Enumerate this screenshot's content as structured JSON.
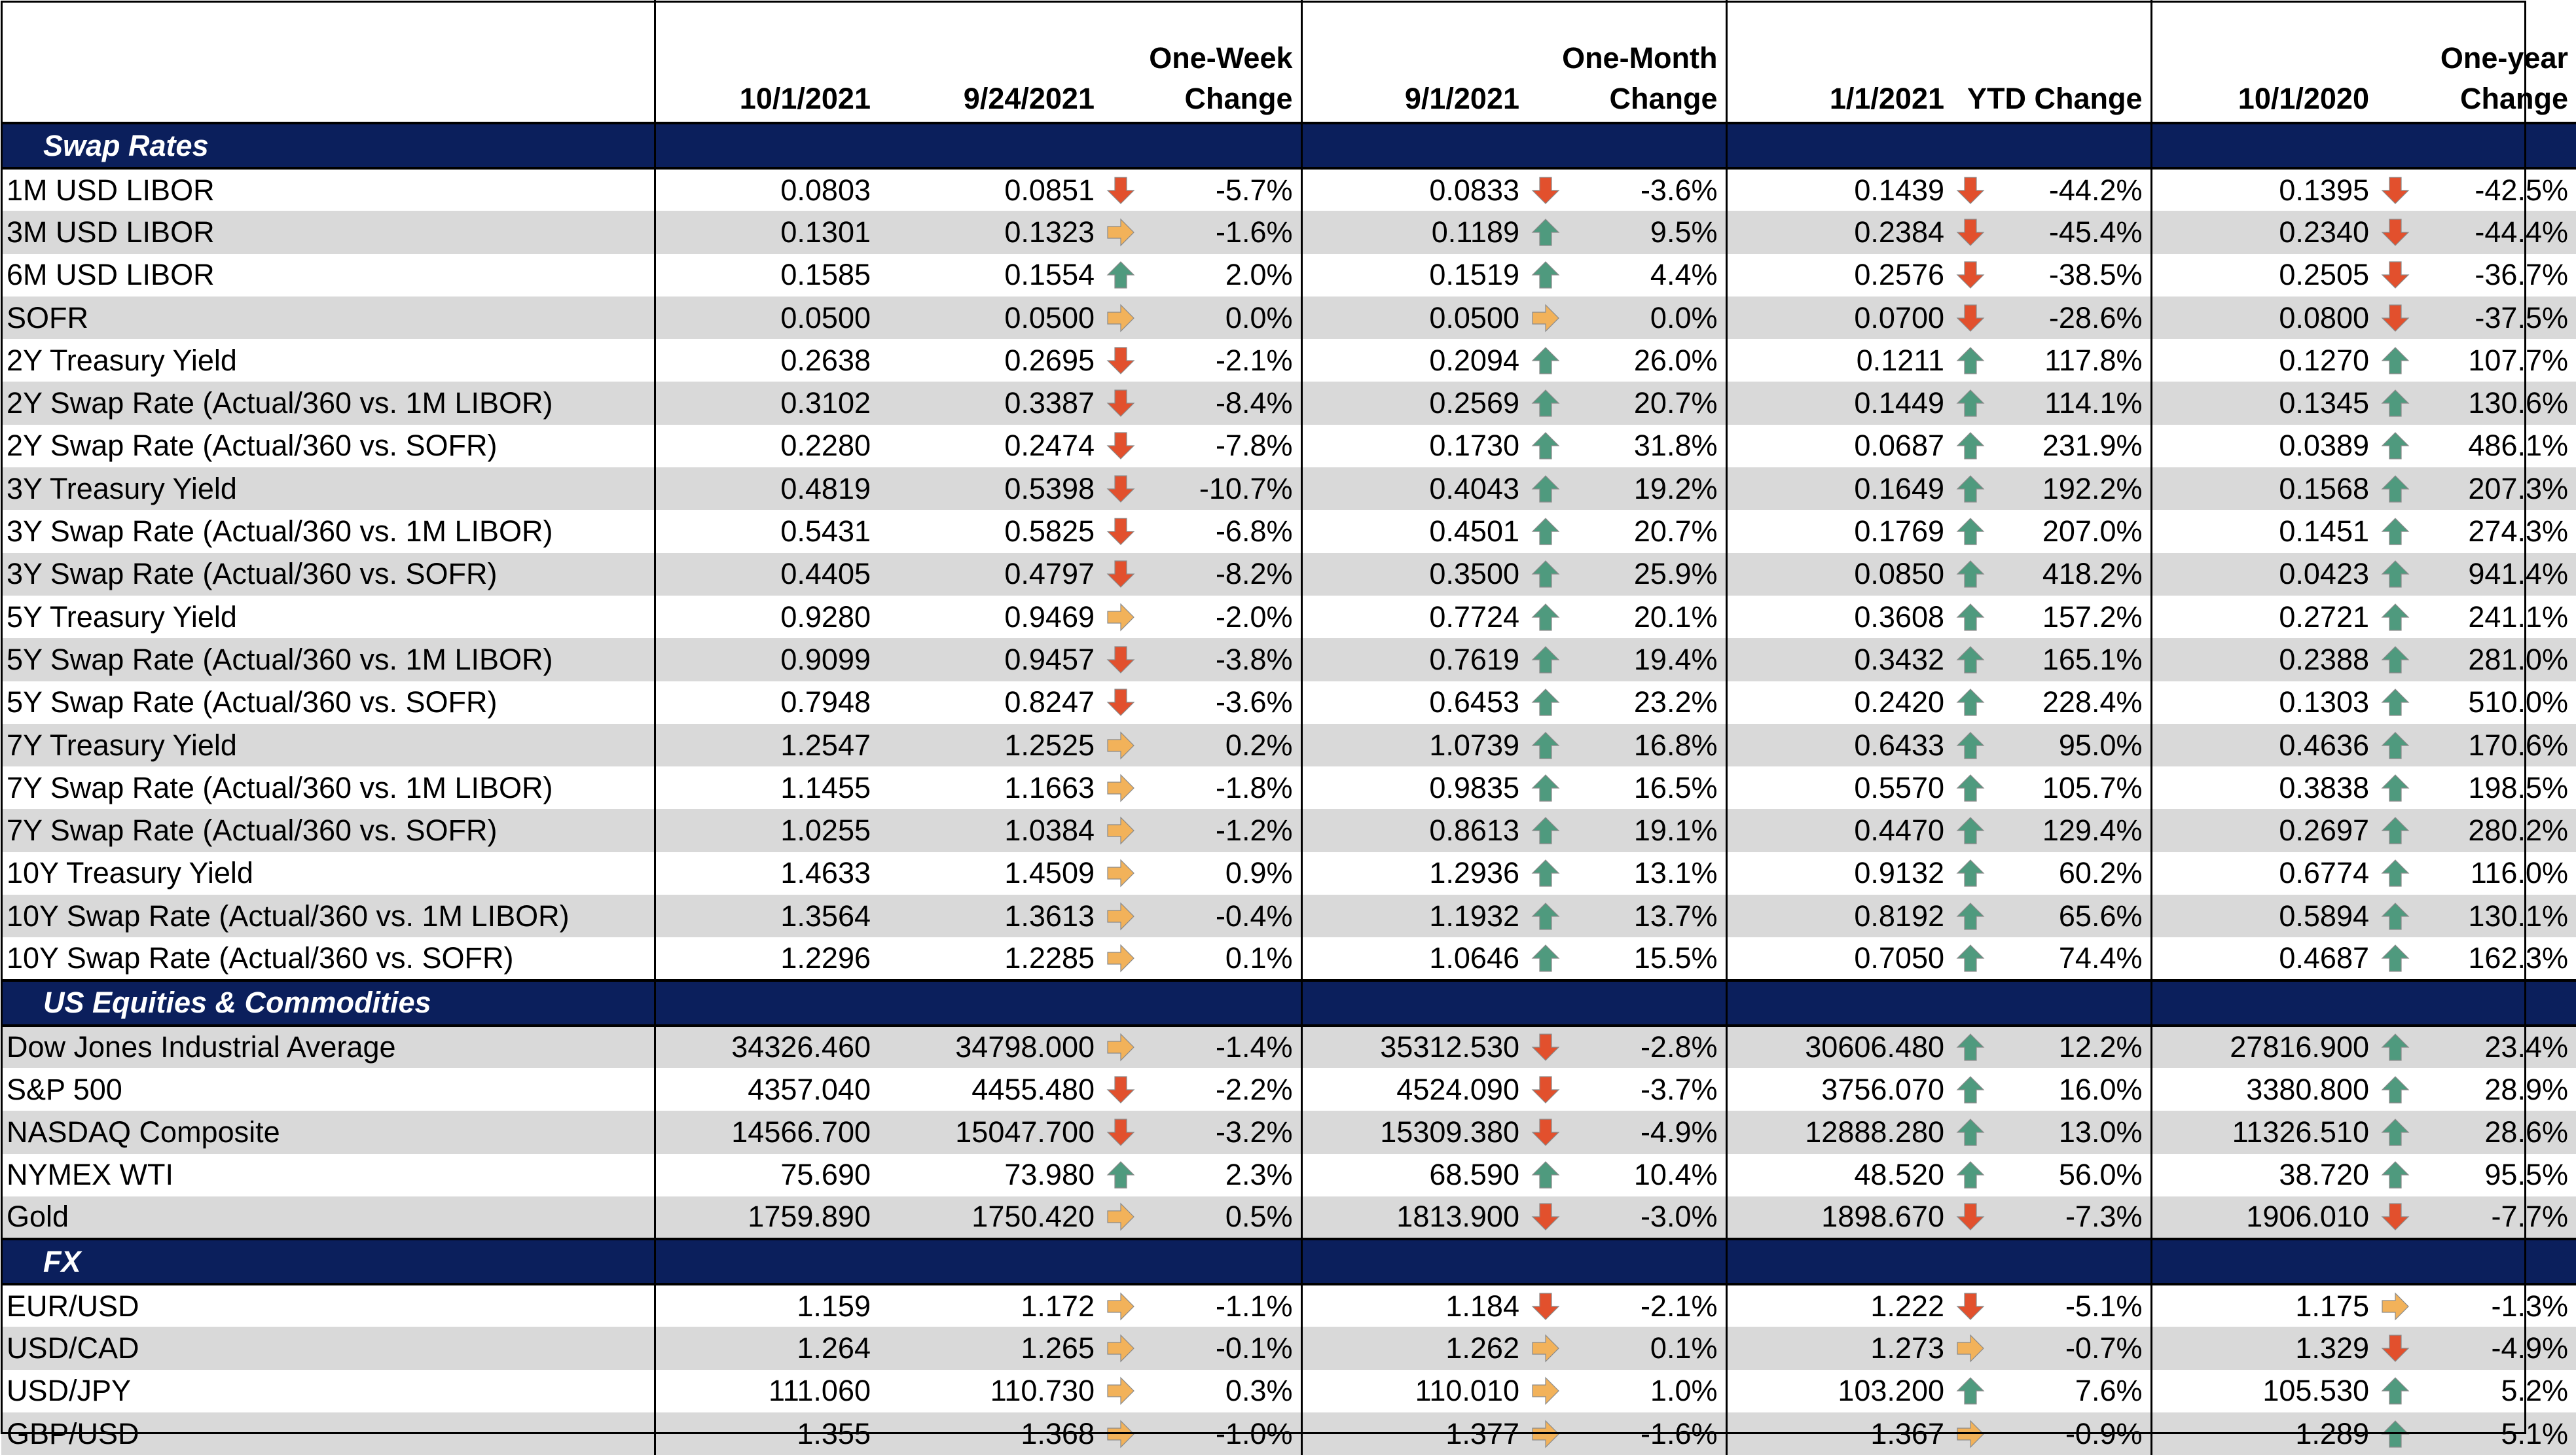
{
  "headers": {
    "label": "",
    "d1": "10/1/2021",
    "d2": "9/24/2021",
    "c2": [
      "One-Week",
      "Change"
    ],
    "d3": "9/1/2021",
    "c3": [
      "One-Month",
      "Change"
    ],
    "d4": "1/1/2021",
    "c4": [
      "",
      "YTD Change"
    ],
    "d5": "10/1/2020",
    "c5": [
      "One-year",
      "Change"
    ]
  },
  "colors": {
    "section_bg": "#0b1f5c",
    "shade": "#d9d9d9",
    "up": "#4f9a7e",
    "down": "#e2502d",
    "flat": "#f2b25a"
  },
  "sections": [
    {
      "title": "Swap Rates",
      "rows": [
        {
          "label": "1M USD LIBOR",
          "v1": "0.0803",
          "v2": "0.0851",
          "a2": "down",
          "c2": "-5.7%",
          "v3": "0.0833",
          "a3": "down",
          "c3": "-3.6%",
          "v4": "0.1439",
          "a4": "down",
          "c4": "-44.2%",
          "v5": "0.1395",
          "a5": "down",
          "c5": "-42.5%"
        },
        {
          "label": "3M USD LIBOR",
          "v1": "0.1301",
          "v2": "0.1323",
          "a2": "flat",
          "c2": "-1.6%",
          "v3": "0.1189",
          "a3": "up",
          "c3": "9.5%",
          "v4": "0.2384",
          "a4": "down",
          "c4": "-45.4%",
          "v5": "0.2340",
          "a5": "down",
          "c5": "-44.4%"
        },
        {
          "label": "6M USD LIBOR",
          "v1": "0.1585",
          "v2": "0.1554",
          "a2": "up",
          "c2": "2.0%",
          "v3": "0.1519",
          "a3": "up",
          "c3": "4.4%",
          "v4": "0.2576",
          "a4": "down",
          "c4": "-38.5%",
          "v5": "0.2505",
          "a5": "down",
          "c5": "-36.7%"
        },
        {
          "label": "SOFR",
          "v1": "0.0500",
          "v2": "0.0500",
          "a2": "flat",
          "c2": "0.0%",
          "v3": "0.0500",
          "a3": "flat",
          "c3": "0.0%",
          "v4": "0.0700",
          "a4": "down",
          "c4": "-28.6%",
          "v5": "0.0800",
          "a5": "down",
          "c5": "-37.5%"
        },
        {
          "label": "2Y Treasury Yield",
          "v1": "0.2638",
          "v2": "0.2695",
          "a2": "down",
          "c2": "-2.1%",
          "v3": "0.2094",
          "a3": "up",
          "c3": "26.0%",
          "v4": "0.1211",
          "a4": "up",
          "c4": "117.8%",
          "v5": "0.1270",
          "a5": "up",
          "c5": "107.7%"
        },
        {
          "label": "2Y Swap Rate (Actual/360 vs. 1M LIBOR)",
          "v1": "0.3102",
          "v2": "0.3387",
          "a2": "down",
          "c2": "-8.4%",
          "v3": "0.2569",
          "a3": "up",
          "c3": "20.7%",
          "v4": "0.1449",
          "a4": "up",
          "c4": "114.1%",
          "v5": "0.1345",
          "a5": "up",
          "c5": "130.6%"
        },
        {
          "label": "2Y Swap Rate (Actual/360 vs. SOFR)",
          "v1": "0.2280",
          "v2": "0.2474",
          "a2": "down",
          "c2": "-7.8%",
          "v3": "0.1730",
          "a3": "up",
          "c3": "31.8%",
          "v4": "0.0687",
          "a4": "up",
          "c4": "231.9%",
          "v5": "0.0389",
          "a5": "up",
          "c5": "486.1%"
        },
        {
          "label": "3Y Treasury Yield",
          "v1": "0.4819",
          "v2": "0.5398",
          "a2": "down",
          "c2": "-10.7%",
          "v3": "0.4043",
          "a3": "up",
          "c3": "19.2%",
          "v4": "0.1649",
          "a4": "up",
          "c4": "192.2%",
          "v5": "0.1568",
          "a5": "up",
          "c5": "207.3%"
        },
        {
          "label": "3Y Swap Rate (Actual/360 vs. 1M LIBOR)",
          "v1": "0.5431",
          "v2": "0.5825",
          "a2": "down",
          "c2": "-6.8%",
          "v3": "0.4501",
          "a3": "up",
          "c3": "20.7%",
          "v4": "0.1769",
          "a4": "up",
          "c4": "207.0%",
          "v5": "0.1451",
          "a5": "up",
          "c5": "274.3%"
        },
        {
          "label": "3Y Swap Rate (Actual/360 vs. SOFR)",
          "v1": "0.4405",
          "v2": "0.4797",
          "a2": "down",
          "c2": "-8.2%",
          "v3": "0.3500",
          "a3": "up",
          "c3": "25.9%",
          "v4": "0.0850",
          "a4": "up",
          "c4": "418.2%",
          "v5": "0.0423",
          "a5": "up",
          "c5": "941.4%"
        },
        {
          "label": "5Y Treasury Yield",
          "v1": "0.9280",
          "v2": "0.9469",
          "a2": "flat",
          "c2": "-2.0%",
          "v3": "0.7724",
          "a3": "up",
          "c3": "20.1%",
          "v4": "0.3608",
          "a4": "up",
          "c4": "157.2%",
          "v5": "0.2721",
          "a5": "up",
          "c5": "241.1%"
        },
        {
          "label": "5Y Swap Rate (Actual/360 vs. 1M LIBOR)",
          "v1": "0.9099",
          "v2": "0.9457",
          "a2": "down",
          "c2": "-3.8%",
          "v3": "0.7619",
          "a3": "up",
          "c3": "19.4%",
          "v4": "0.3432",
          "a4": "up",
          "c4": "165.1%",
          "v5": "0.2388",
          "a5": "up",
          "c5": "281.0%"
        },
        {
          "label": "5Y Swap Rate (Actual/360 vs. SOFR)",
          "v1": "0.7948",
          "v2": "0.8247",
          "a2": "down",
          "c2": "-3.6%",
          "v3": "0.6453",
          "a3": "up",
          "c3": "23.2%",
          "v4": "0.2420",
          "a4": "up",
          "c4": "228.4%",
          "v5": "0.1303",
          "a5": "up",
          "c5": "510.0%"
        },
        {
          "label": "7Y Treasury Yield",
          "v1": "1.2547",
          "v2": "1.2525",
          "a2": "flat",
          "c2": "0.2%",
          "v3": "1.0739",
          "a3": "up",
          "c3": "16.8%",
          "v4": "0.6433",
          "a4": "up",
          "c4": "95.0%",
          "v5": "0.4636",
          "a5": "up",
          "c5": "170.6%"
        },
        {
          "label": "7Y Swap Rate (Actual/360 vs. 1M LIBOR)",
          "v1": "1.1455",
          "v2": "1.1663",
          "a2": "flat",
          "c2": "-1.8%",
          "v3": "0.9835",
          "a3": "up",
          "c3": "16.5%",
          "v4": "0.5570",
          "a4": "up",
          "c4": "105.7%",
          "v5": "0.3838",
          "a5": "up",
          "c5": "198.5%"
        },
        {
          "label": "7Y Swap Rate (Actual/360 vs. SOFR)",
          "v1": "1.0255",
          "v2": "1.0384",
          "a2": "flat",
          "c2": "-1.2%",
          "v3": "0.8613",
          "a3": "up",
          "c3": "19.1%",
          "v4": "0.4470",
          "a4": "up",
          "c4": "129.4%",
          "v5": "0.2697",
          "a5": "up",
          "c5": "280.2%"
        },
        {
          "label": "10Y Treasury Yield",
          "v1": "1.4633",
          "v2": "1.4509",
          "a2": "flat",
          "c2": "0.9%",
          "v3": "1.2936",
          "a3": "up",
          "c3": "13.1%",
          "v4": "0.9132",
          "a4": "up",
          "c4": "60.2%",
          "v5": "0.6774",
          "a5": "up",
          "c5": "116.0%"
        },
        {
          "label": "10Y Swap Rate (Actual/360 vs. 1M LIBOR)",
          "v1": "1.3564",
          "v2": "1.3613",
          "a2": "flat",
          "c2": "-0.4%",
          "v3": "1.1932",
          "a3": "up",
          "c3": "13.7%",
          "v4": "0.8192",
          "a4": "up",
          "c4": "65.6%",
          "v5": "0.5894",
          "a5": "up",
          "c5": "130.1%"
        },
        {
          "label": "10Y Swap Rate (Actual/360 vs. SOFR)",
          "v1": "1.2296",
          "v2": "1.2285",
          "a2": "flat",
          "c2": "0.1%",
          "v3": "1.0646",
          "a3": "up",
          "c3": "15.5%",
          "v4": "0.7050",
          "a4": "up",
          "c4": "74.4%",
          "v5": "0.4687",
          "a5": "up",
          "c5": "162.3%"
        }
      ]
    },
    {
      "title": "US Equities & Commodities",
      "rows": [
        {
          "label": "Dow Jones Industrial Average",
          "v1": "34326.460",
          "v2": "34798.000",
          "a2": "flat",
          "c2": "-1.4%",
          "v3": "35312.530",
          "a3": "down",
          "c3": "-2.8%",
          "v4": "30606.480",
          "a4": "up",
          "c4": "12.2%",
          "v5": "27816.900",
          "a5": "up",
          "c5": "23.4%"
        },
        {
          "label": "S&P 500",
          "v1": "4357.040",
          "v2": "4455.480",
          "a2": "down",
          "c2": "-2.2%",
          "v3": "4524.090",
          "a3": "down",
          "c3": "-3.7%",
          "v4": "3756.070",
          "a4": "up",
          "c4": "16.0%",
          "v5": "3380.800",
          "a5": "up",
          "c5": "28.9%"
        },
        {
          "label": "NASDAQ Composite",
          "v1": "14566.700",
          "v2": "15047.700",
          "a2": "down",
          "c2": "-3.2%",
          "v3": "15309.380",
          "a3": "down",
          "c3": "-4.9%",
          "v4": "12888.280",
          "a4": "up",
          "c4": "13.0%",
          "v5": "11326.510",
          "a5": "up",
          "c5": "28.6%"
        },
        {
          "label": "NYMEX WTI",
          "v1": "75.690",
          "v2": "73.980",
          "a2": "up",
          "c2": "2.3%",
          "v3": "68.590",
          "a3": "up",
          "c3": "10.4%",
          "v4": "48.520",
          "a4": "up",
          "c4": "56.0%",
          "v5": "38.720",
          "a5": "up",
          "c5": "95.5%"
        },
        {
          "label": "Gold",
          "v1": "1759.890",
          "v2": "1750.420",
          "a2": "flat",
          "c2": "0.5%",
          "v3": "1813.900",
          "a3": "down",
          "c3": "-3.0%",
          "v4": "1898.670",
          "a4": "down",
          "c4": "-7.3%",
          "v5": "1906.010",
          "a5": "down",
          "c5": "-7.7%"
        }
      ]
    },
    {
      "title": "FX",
      "rows": [
        {
          "label": "EUR/USD",
          "v1": "1.159",
          "v2": "1.172",
          "a2": "flat",
          "c2": "-1.1%",
          "v3": "1.184",
          "a3": "down",
          "c3": "-2.1%",
          "v4": "1.222",
          "a4": "down",
          "c4": "-5.1%",
          "v5": "1.175",
          "a5": "flat",
          "c5": "-1.3%"
        },
        {
          "label": "USD/CAD",
          "v1": "1.264",
          "v2": "1.265",
          "a2": "flat",
          "c2": "-0.1%",
          "v3": "1.262",
          "a3": "flat",
          "c3": "0.1%",
          "v4": "1.273",
          "a4": "flat",
          "c4": "-0.7%",
          "v5": "1.329",
          "a5": "down",
          "c5": "-4.9%"
        },
        {
          "label": "USD/JPY",
          "v1": "111.060",
          "v2": "110.730",
          "a2": "flat",
          "c2": "0.3%",
          "v3": "110.010",
          "a3": "flat",
          "c3": "1.0%",
          "v4": "103.200",
          "a4": "up",
          "c4": "7.6%",
          "v5": "105.530",
          "a5": "up",
          "c5": "5.2%"
        },
        {
          "label": "GBP/USD",
          "v1": "1.355",
          "v2": "1.368",
          "a2": "flat",
          "c2": "-1.0%",
          "v3": "1.377",
          "a3": "flat",
          "c3": "-1.6%",
          "v4": "1.367",
          "a4": "flat",
          "c4": "-0.9%",
          "v5": "1.289",
          "a5": "up",
          "c5": "5.1%"
        }
      ]
    }
  ]
}
